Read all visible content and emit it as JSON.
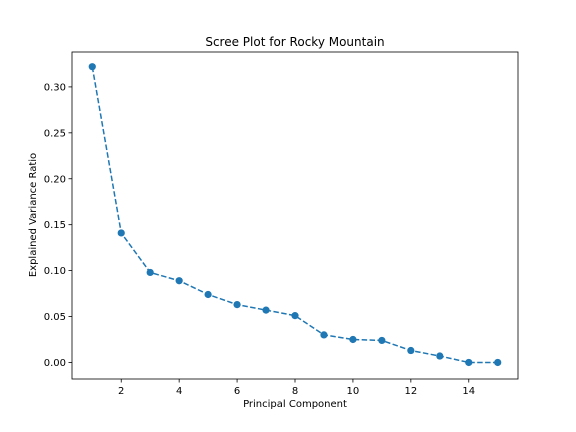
{
  "chart_data": {
    "type": "line",
    "title": "Scree Plot for Rocky Mountain",
    "xlabel": "Principal Component",
    "ylabel": "Explained Variance Ratio",
    "xlim": [
      0.3,
      15.7
    ],
    "ylim": [
      -0.018,
      0.338
    ],
    "xticks": [
      2,
      4,
      6,
      8,
      10,
      12,
      14
    ],
    "yticks": [
      0.0,
      0.05,
      0.1,
      0.15,
      0.2,
      0.25,
      0.3
    ],
    "ytick_labels": [
      "0.00",
      "0.05",
      "0.10",
      "0.15",
      "0.20",
      "0.25",
      "0.30"
    ],
    "grid": false,
    "series": [
      {
        "line_style": "dashed",
        "marker": "circle",
        "color": "#1f77b4",
        "x": [
          1,
          2,
          3,
          4,
          5,
          6,
          7,
          8,
          9,
          10,
          11,
          12,
          13,
          14,
          15
        ],
        "y": [
          0.322,
          0.141,
          0.098,
          0.089,
          0.074,
          0.063,
          0.057,
          0.051,
          0.03,
          0.025,
          0.024,
          0.013,
          0.007,
          0.0,
          0.0
        ]
      }
    ]
  }
}
